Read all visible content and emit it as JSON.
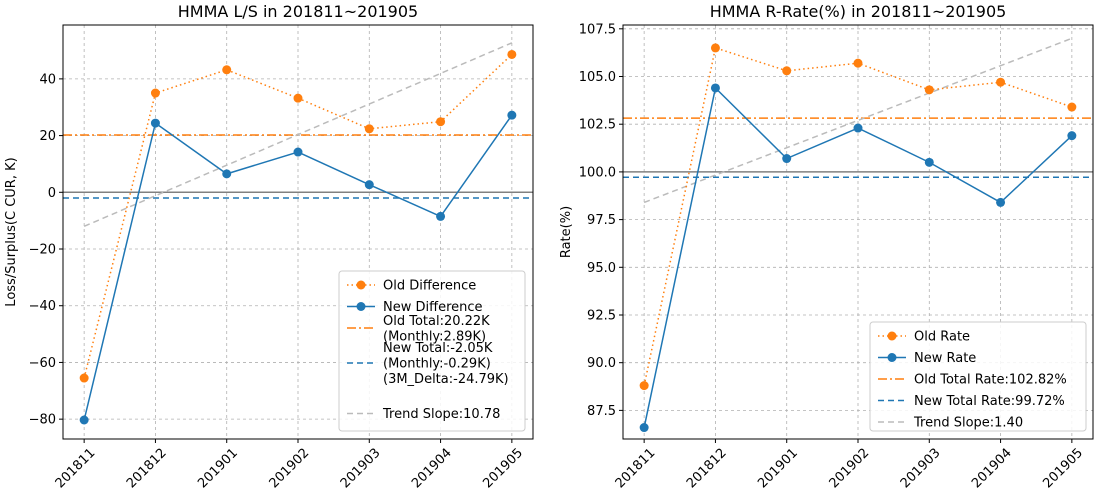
{
  "chart_data": [
    {
      "type": "line",
      "title": "HMMA L/S in 201811~201905",
      "xlabel": "",
      "ylabel": "Loss/Surplus(C CUR, K)",
      "categories": [
        "201811",
        "201812",
        "201901",
        "201902",
        "201903",
        "201904",
        "201905"
      ],
      "ylim": [
        -87,
        59
      ],
      "yticks": [
        -80,
        -60,
        -40,
        -20,
        0,
        20,
        40
      ],
      "ytick_labels": [
        "−80",
        "−60",
        "−40",
        "−20",
        "0",
        "20",
        "40"
      ],
      "grid": true,
      "legend_position": "lower-right",
      "zero_line": 0,
      "series": [
        {
          "name": "Old Difference",
          "style": "dotted-marker",
          "color": "#ff7f0e",
          "values": [
            -65.5,
            35.0,
            43.2,
            33.2,
            22.4,
            24.9,
            48.6
          ]
        },
        {
          "name": "New Difference",
          "style": "solid-marker",
          "color": "#1f77b4",
          "values": [
            -80.3,
            24.4,
            6.5,
            14.2,
            2.7,
            -8.5,
            27.2
          ]
        }
      ],
      "reference_lines": [
        {
          "name": "Old Total:20.22K\n(Monthly:2.89K)",
          "value": 20.2,
          "style": "dashdot",
          "color": "#ff7f0e"
        },
        {
          "name": "New Total:-2.05K\n(Monthly:-0.29K)\n(3M_Delta:-24.79K)",
          "value": -2.0,
          "style": "dashed",
          "color": "#1f77b4"
        }
      ],
      "trend": {
        "name": "Trend Slope:10.78",
        "start": -12.0,
        "end": 52.7,
        "color": "#bbbbbb"
      }
    },
    {
      "type": "line",
      "title": "HMMA R-Rate(%) in 201811~201905",
      "xlabel": "",
      "ylabel": "Rate(%)",
      "categories": [
        "201811",
        "201812",
        "201901",
        "201902",
        "201903",
        "201904",
        "201905"
      ],
      "ylim": [
        86.0,
        107.7
      ],
      "yticks": [
        87.5,
        90.0,
        92.5,
        95.0,
        97.5,
        100.0,
        102.5,
        105.0,
        107.5
      ],
      "ytick_labels": [
        "87.5",
        "90.0",
        "92.5",
        "95.0",
        "97.5",
        "100.0",
        "102.5",
        "105.0",
        "107.5"
      ],
      "grid": true,
      "legend_position": "lower-right",
      "zero_line": 100.0,
      "series": [
        {
          "name": "Old Rate",
          "style": "dotted-marker",
          "color": "#ff7f0e",
          "values": [
            88.8,
            106.5,
            105.3,
            105.7,
            104.3,
            104.7,
            103.4
          ]
        },
        {
          "name": "New Rate",
          "style": "solid-marker",
          "color": "#1f77b4",
          "values": [
            86.6,
            104.4,
            100.7,
            102.3,
            100.5,
            98.4,
            101.9
          ]
        }
      ],
      "reference_lines": [
        {
          "name": "Old Total Rate:102.82%",
          "value": 102.82,
          "style": "dashdot",
          "color": "#ff7f0e"
        },
        {
          "name": "New Total Rate:99.72%",
          "value": 99.72,
          "style": "dashed",
          "color": "#1f77b4"
        }
      ],
      "trend": {
        "name": "Trend Slope:1.40",
        "start": 98.4,
        "end": 107.0,
        "color": "#bbbbbb"
      }
    }
  ]
}
